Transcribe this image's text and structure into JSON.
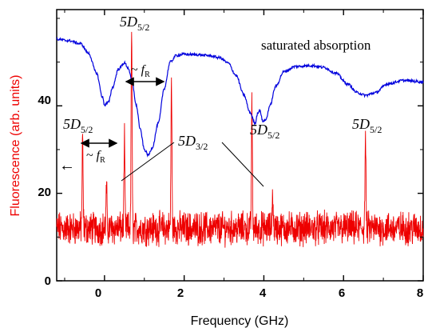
{
  "chart_data": {
    "type": "line",
    "xlabel": "Frequency (GHz)",
    "ylabel": "Fluorescence (arb. units)",
    "xlim": [
      -1.2,
      8
    ],
    "ylim": [
      0,
      62
    ],
    "x_ticks": [
      "0",
      "2",
      "4",
      "6",
      "8"
    ],
    "x_tick_values": [
      0,
      2,
      4,
      6,
      8
    ],
    "y_ticks": [
      "0",
      "20",
      "40"
    ],
    "y_tick_values": [
      0,
      20,
      40
    ],
    "colors": {
      "fluorescence": "#ee0000",
      "saturated_absorption": "#0000dd",
      "ylabel": "#ee0000"
    },
    "series": [
      {
        "key": "saturated_absorption",
        "points": [
          [
            -1.2,
            55.2
          ],
          [
            -0.9,
            54.9
          ],
          [
            -0.6,
            54.2
          ],
          [
            -0.4,
            52.0
          ],
          [
            -0.2,
            47.5
          ],
          [
            -0.05,
            42.0
          ],
          [
            0.0,
            40.2
          ],
          [
            0.1,
            40.8
          ],
          [
            0.2,
            44.2
          ],
          [
            0.35,
            48.4
          ],
          [
            0.5,
            49.8
          ],
          [
            0.6,
            48.6
          ],
          [
            0.7,
            45.0
          ],
          [
            0.8,
            40.0
          ],
          [
            0.9,
            34.5
          ],
          [
            1.0,
            30.0
          ],
          [
            1.1,
            28.7
          ],
          [
            1.2,
            30.5
          ],
          [
            1.35,
            36.0
          ],
          [
            1.5,
            44.0
          ],
          [
            1.65,
            50.0
          ],
          [
            1.8,
            51.5
          ],
          [
            2.0,
            51.8
          ],
          [
            2.3,
            51.7
          ],
          [
            2.6,
            51.5
          ],
          [
            2.9,
            51.0
          ],
          [
            3.1,
            49.8
          ],
          [
            3.3,
            47.0
          ],
          [
            3.5,
            42.5
          ],
          [
            3.65,
            38.5
          ],
          [
            3.78,
            36.0
          ],
          [
            3.85,
            38.5
          ],
          [
            3.9,
            39.0
          ],
          [
            3.97,
            36.5
          ],
          [
            4.05,
            36.8
          ],
          [
            4.15,
            40.0
          ],
          [
            4.3,
            44.5
          ],
          [
            4.5,
            47.8
          ],
          [
            4.8,
            49.0
          ],
          [
            5.2,
            49.2
          ],
          [
            5.5,
            48.8
          ],
          [
            5.8,
            47.5
          ],
          [
            6.1,
            45.0
          ],
          [
            6.35,
            43.0
          ],
          [
            6.55,
            42.4
          ],
          [
            6.8,
            43.0
          ],
          [
            7.1,
            45.0
          ],
          [
            7.5,
            45.8
          ],
          [
            8.0,
            45.5
          ]
        ]
      },
      {
        "key": "fluorescence",
        "baseline": 12.0,
        "noise_amplitude": 3.0,
        "peaks": [
          {
            "x": -0.55,
            "y": 32
          },
          {
            "x": 0.05,
            "y": 21
          },
          {
            "x": 0.5,
            "y": 32
          },
          {
            "x": 0.68,
            "y": 58
          },
          {
            "x": 1.68,
            "y": 46
          },
          {
            "x": 3.7,
            "y": 40
          },
          {
            "x": 4.22,
            "y": 20
          },
          {
            "x": 6.55,
            "y": 33
          }
        ]
      }
    ],
    "annotations": {
      "saturated_absorption": "saturated absorption",
      "peak_52_a": {
        "main": "5D",
        "sub": "5/2"
      },
      "peak_52_b": {
        "main": "5D",
        "sub": "5/2"
      },
      "peak_52_c": {
        "main": "5D",
        "sub": "5/2"
      },
      "peak_52_d": {
        "main": "5D",
        "sub": "5/2"
      },
      "peak_32": {
        "main": "5D",
        "sub": "3/2"
      },
      "fr_upper": {
        "prefix": "~ ",
        "main": "f",
        "sub": "R"
      },
      "fr_lower": {
        "prefix": "~ ",
        "main": "f",
        "sub": "R"
      },
      "left_arrow": "←"
    }
  }
}
